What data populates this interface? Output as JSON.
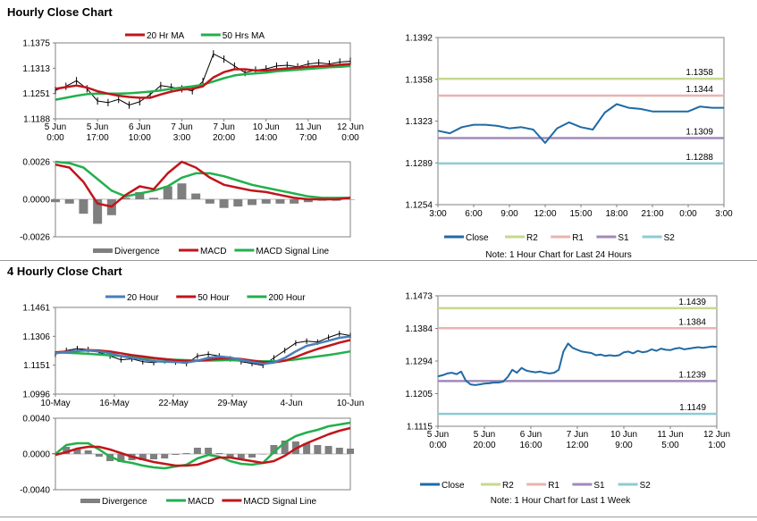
{
  "sections": [
    {
      "title": "Hourly Close Chart"
    },
    {
      "title": "4 Hourly Close Chart"
    }
  ],
  "colors": {
    "ma20": "#c0161b",
    "ma50": "#22b04c",
    "price": "#000000",
    "close": "#1f6aa5",
    "r2": "#c5d98e",
    "r1": "#eab3b1",
    "s1": "#a08ab8",
    "s2": "#8ecbd4",
    "divergence": "#7f7f7f",
    "blue_ma": "#4a7ebb"
  },
  "chart_data": [
    {
      "id": "hourly-price",
      "type": "line",
      "legend": [
        "20 Hr MA",
        "50 Hrs MA"
      ],
      "yticks": [
        "1.1375",
        "1.1313",
        "1.1251",
        "1.1188"
      ],
      "ylim": [
        1.1188,
        1.1375
      ],
      "xticks": [
        [
          "5 Jun",
          "0:00"
        ],
        [
          "5 Jun",
          "17:00"
        ],
        [
          "6 Jun",
          "10:00"
        ],
        [
          "7 Jun",
          "3:00"
        ],
        [
          "7 Jun",
          "20:00"
        ],
        [
          "10 Jun",
          "14:00"
        ],
        [
          "11 Jun",
          "7:00"
        ],
        [
          "12 Jun",
          "0:00"
        ]
      ],
      "x": [
        0,
        3,
        6,
        9,
        12,
        15,
        18,
        21,
        24,
        27,
        30,
        33,
        36,
        39,
        42,
        45,
        48,
        51,
        54,
        57,
        60,
        63,
        66,
        69,
        72,
        75,
        78,
        81,
        84
      ],
      "price": [
        1.1258,
        1.1268,
        1.1282,
        1.1262,
        1.1232,
        1.1228,
        1.1236,
        1.1222,
        1.123,
        1.1248,
        1.127,
        1.1266,
        1.1262,
        1.1257,
        1.128,
        1.1348,
        1.1335,
        1.1318,
        1.1302,
        1.1308,
        1.1311,
        1.1318,
        1.132,
        1.1316,
        1.1323,
        1.1326,
        1.1323,
        1.1328,
        1.133
      ],
      "ma20": [
        1.1262,
        1.1266,
        1.127,
        1.1265,
        1.1256,
        1.125,
        1.1245,
        1.1242,
        1.124,
        1.124,
        1.1248,
        1.1255,
        1.126,
        1.1262,
        1.1268,
        1.129,
        1.1303,
        1.131,
        1.131,
        1.1307,
        1.1307,
        1.131,
        1.1312,
        1.1314,
        1.1316,
        1.1318,
        1.1319,
        1.1321,
        1.1323
      ],
      "ma50": [
        1.1235,
        1.124,
        1.1245,
        1.1249,
        1.125,
        1.125,
        1.125,
        1.1251,
        1.1253,
        1.1255,
        1.1258,
        1.1262,
        1.1265,
        1.1268,
        1.1272,
        1.128,
        1.1288,
        1.1295,
        1.1298,
        1.13,
        1.1302,
        1.1305,
        1.1307,
        1.1309,
        1.1311,
        1.1313,
        1.1315,
        1.1316,
        1.1318
      ]
    },
    {
      "id": "hourly-macd",
      "type": "line",
      "legend": [
        "Divergence",
        "MACD",
        "MACD Signal Line"
      ],
      "yticks": [
        "0.0026",
        "0.0000",
        "-0.0026"
      ],
      "ylim": [
        -0.0026,
        0.0026
      ],
      "x": [
        0,
        4,
        8,
        12,
        16,
        20,
        24,
        28,
        32,
        36,
        40,
        44,
        48,
        52,
        56,
        60,
        64,
        68,
        72,
        76,
        80,
        84
      ],
      "macd": [
        0.0024,
        0.0022,
        0.0012,
        -0.0003,
        -0.0005,
        0.0003,
        0.0009,
        0.0007,
        0.0018,
        0.0026,
        0.0022,
        0.0015,
        0.001,
        0.0008,
        0.0006,
        0.0005,
        0.0003,
        0.0001,
        0.0,
        0.0,
        0.0,
        0.0001
      ],
      "signal": [
        0.0026,
        0.0025,
        0.0022,
        0.0014,
        0.0006,
        0.0002,
        0.0004,
        0.0006,
        0.0009,
        0.0015,
        0.0018,
        0.0018,
        0.0016,
        0.0013,
        0.001,
        0.0008,
        0.0006,
        0.0004,
        0.0002,
        0.0001,
        0.0001,
        0.0001
      ],
      "divergence": [
        -0.0002,
        -0.0003,
        -0.001,
        -0.0017,
        -0.0011,
        0.0001,
        0.0005,
        0.0001,
        0.0009,
        0.0011,
        0.0004,
        -0.0003,
        -0.0006,
        -0.0005,
        -0.0004,
        -0.0003,
        -0.0003,
        -0.0003,
        -0.0002,
        -0.0001,
        -0.0001,
        0.0
      ]
    },
    {
      "id": "hourly-levels",
      "type": "line",
      "yticks": [
        "1.1392",
        "1.1358",
        "1.1323",
        "1.1289",
        "1.1254"
      ],
      "ylim": [
        1.1254,
        1.1392
      ],
      "xticks": [
        "3:00",
        "6:00",
        "9:00",
        "12:00",
        "15:00",
        "18:00",
        "21:00",
        "0:00",
        "3:00"
      ],
      "x": [
        0,
        1,
        2,
        3,
        4,
        5,
        6,
        7,
        8,
        9,
        10,
        11,
        12,
        13,
        14,
        15,
        16,
        17,
        18,
        19,
        20,
        21,
        22,
        23,
        24
      ],
      "close": [
        1.1315,
        1.1313,
        1.1318,
        1.132,
        1.132,
        1.1319,
        1.1317,
        1.1318,
        1.1316,
        1.1305,
        1.1317,
        1.1322,
        1.1318,
        1.1316,
        1.133,
        1.1337,
        1.1334,
        1.1333,
        1.1331,
        1.1331,
        1.1331,
        1.1331,
        1.1335,
        1.1334,
        1.1334
      ],
      "levels": [
        {
          "name": "R2",
          "value": 1.1358,
          "label": "1.1358"
        },
        {
          "name": "R1",
          "value": 1.1344,
          "label": "1.1344"
        },
        {
          "name": "S1",
          "value": 1.1309,
          "label": "1.1309"
        },
        {
          "name": "S2",
          "value": 1.1288,
          "label": "1.1288"
        }
      ],
      "legend": [
        "Close",
        "R2",
        "R1",
        "S1",
        "S2"
      ],
      "note": "Note: 1 Hour Chart for Last 24 Hours"
    },
    {
      "id": "4hourly-price",
      "type": "line",
      "legend": [
        "20 Hour",
        "50 Hour",
        "200 Hour"
      ],
      "yticks": [
        "1.1461",
        "1.1306",
        "1.1151",
        "1.0996"
      ],
      "ylim": [
        1.0996,
        1.1461
      ],
      "xticks": [
        "10-May",
        "16-May",
        "22-May",
        "29-May",
        "4-Jun",
        "10-Jun"
      ],
      "x": [
        0,
        4,
        8,
        12,
        16,
        20,
        24,
        28,
        32,
        36,
        40,
        44,
        48,
        52,
        56,
        60,
        64,
        68,
        72,
        76,
        80,
        84,
        88,
        92,
        96,
        100,
        104,
        108
      ],
      "price": [
        1.121,
        1.123,
        1.124,
        1.1235,
        1.122,
        1.12,
        1.118,
        1.1185,
        1.117,
        1.1165,
        1.1175,
        1.1168,
        1.116,
        1.12,
        1.121,
        1.12,
        1.1185,
        1.117,
        1.116,
        1.115,
        1.119,
        1.123,
        1.127,
        1.128,
        1.1275,
        1.13,
        1.132,
        1.131
      ],
      "ma20": [
        1.1215,
        1.1222,
        1.1228,
        1.123,
        1.1225,
        1.1215,
        1.12,
        1.119,
        1.1182,
        1.1172,
        1.117,
        1.1168,
        1.1165,
        1.1175,
        1.119,
        1.1198,
        1.1192,
        1.118,
        1.1168,
        1.1158,
        1.1165,
        1.119,
        1.1225,
        1.1255,
        1.1268,
        1.1282,
        1.1298,
        1.1305
      ],
      "ma50": [
        1.122,
        1.1224,
        1.1228,
        1.1232,
        1.123,
        1.1224,
        1.1215,
        1.1205,
        1.1198,
        1.119,
        1.1184,
        1.1178,
        1.1174,
        1.1175,
        1.118,
        1.1186,
        1.1188,
        1.1184,
        1.1176,
        1.1168,
        1.1166,
        1.1175,
        1.1195,
        1.1218,
        1.1238,
        1.1255,
        1.1272,
        1.1286
      ],
      "ma200": [
        1.122,
        1.1218,
        1.1215,
        1.1212,
        1.1208,
        1.1204,
        1.12,
        1.1195,
        1.119,
        1.1186,
        1.1182,
        1.118,
        1.1178,
        1.1176,
        1.1176,
        1.1177,
        1.1178,
        1.1176,
        1.1174,
        1.1172,
        1.1172,
        1.1176,
        1.1182,
        1.119,
        1.1198,
        1.1206,
        1.1215,
        1.1225
      ]
    },
    {
      "id": "4hourly-macd",
      "type": "line",
      "legend": [
        "Divergence",
        "MACD",
        "MACD Signal Line"
      ],
      "yticks": [
        "0.0040",
        "0.0000",
        "-0.0040"
      ],
      "ylim": [
        -0.004,
        0.004
      ],
      "x": [
        0,
        4,
        8,
        12,
        16,
        20,
        24,
        28,
        32,
        36,
        40,
        44,
        48,
        52,
        56,
        60,
        64,
        68,
        72,
        76,
        80,
        84,
        88,
        92,
        96,
        100,
        104,
        108
      ],
      "macd": [
        0.0,
        0.001,
        0.0012,
        0.0012,
        0.0005,
        -0.0003,
        -0.0008,
        -0.001,
        -0.0013,
        -0.0015,
        -0.0016,
        -0.0014,
        -0.0012,
        -0.0005,
        -0.0001,
        -0.0003,
        -0.0008,
        -0.0011,
        -0.0012,
        -0.001,
        0.0002,
        0.0013,
        0.002,
        0.0024,
        0.0027,
        0.0031,
        0.0033,
        0.0035
      ],
      "signal": [
        -0.0001,
        0.0002,
        0.0006,
        0.0008,
        0.0008,
        0.0005,
        0.0001,
        -0.0003,
        -0.0006,
        -0.0009,
        -0.0011,
        -0.0013,
        -0.0013,
        -0.0012,
        -0.0008,
        -0.0004,
        -0.0004,
        -0.0006,
        -0.0008,
        -0.001,
        -0.0008,
        -0.0002,
        0.0006,
        0.0012,
        0.0017,
        0.0022,
        0.0026,
        0.0029
      ],
      "divergence": [
        0.0001,
        0.0008,
        0.0006,
        0.0004,
        -0.0003,
        -0.0008,
        -0.0009,
        -0.0007,
        -0.0007,
        -0.0006,
        -0.0005,
        -0.0001,
        0.0001,
        0.0007,
        0.0007,
        0.0001,
        -0.0004,
        -0.0005,
        -0.0004,
        0.0,
        0.001,
        0.0015,
        0.0014,
        0.0012,
        0.001,
        0.0009,
        0.0007,
        0.0006
      ]
    },
    {
      "id": "4hourly-levels",
      "type": "line",
      "yticks": [
        "1.1473",
        "1.1384",
        "1.1294",
        "1.1205",
        "1.1115"
      ],
      "ylim": [
        1.1115,
        1.1473
      ],
      "xticks": [
        [
          "5 Jun",
          "0:00"
        ],
        [
          "5 Jun",
          "20:00"
        ],
        [
          "6 Jun",
          "16:00"
        ],
        [
          "7 Jun",
          "12:00"
        ],
        [
          "10 Jun",
          "9:00"
        ],
        [
          "11 Jun",
          "5:00"
        ],
        [
          "12 Jun",
          "1:00"
        ]
      ],
      "x": [
        0,
        2,
        4,
        6,
        8,
        10,
        12,
        14,
        16,
        18,
        20,
        22,
        24,
        26,
        28,
        30,
        32,
        34,
        36,
        38,
        40,
        42,
        44,
        46,
        48,
        50,
        52,
        54,
        56,
        58,
        60,
        62,
        64,
        66,
        68,
        70,
        72,
        74,
        76,
        78,
        80,
        82,
        84,
        86,
        88,
        90,
        92,
        94,
        96,
        98,
        100,
        102,
        104,
        106,
        108,
        110,
        112,
        114,
        116,
        118,
        120
      ],
      "close": [
        1.1252,
        1.1255,
        1.126,
        1.1262,
        1.1258,
        1.1265,
        1.124,
        1.123,
        1.1228,
        1.123,
        1.1232,
        1.1233,
        1.1235,
        1.1235,
        1.1237,
        1.125,
        1.127,
        1.1262,
        1.1275,
        1.1268,
        1.1265,
        1.1263,
        1.1265,
        1.1262,
        1.126,
        1.1262,
        1.127,
        1.132,
        1.1342,
        1.133,
        1.1325,
        1.132,
        1.1318,
        1.1316,
        1.131,
        1.1312,
        1.1308,
        1.131,
        1.1308,
        1.131,
        1.1318,
        1.132,
        1.1315,
        1.1322,
        1.1318,
        1.132,
        1.1326,
        1.1322,
        1.1328,
        1.1325,
        1.1324,
        1.1328,
        1.133,
        1.1326,
        1.1328,
        1.133,
        1.1332,
        1.133,
        1.1332,
        1.1334,
        1.1333
      ],
      "levels": [
        {
          "name": "R2",
          "value": 1.1439,
          "label": "1.1439"
        },
        {
          "name": "R1",
          "value": 1.1384,
          "label": "1.1384"
        },
        {
          "name": "S1",
          "value": 1.1239,
          "label": "1.1239"
        },
        {
          "name": "S2",
          "value": 1.1149,
          "label": "1.1149"
        }
      ],
      "legend": [
        "Close",
        "R2",
        "R1",
        "S1",
        "S2"
      ],
      "note": "Note: 1 Hour Chart for Last 1 Week"
    }
  ]
}
